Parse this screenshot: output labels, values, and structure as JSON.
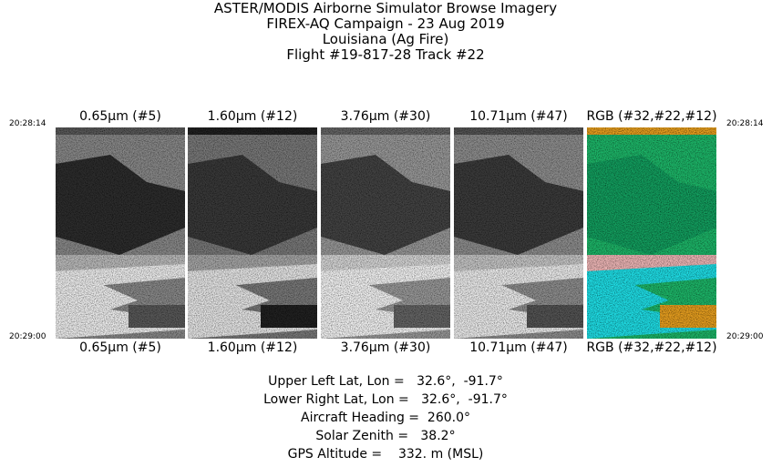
{
  "header": {
    "lines": [
      "ASTER/MODIS Airborne Simulator Browse Imagery",
      "FIREX-AQ Campaign - 23 Aug 2019",
      "Louisiana (Ag Fire)",
      "Flight #19-817-28 Track #22"
    ]
  },
  "times": {
    "start": "20:28:14",
    "end": "20:29:00"
  },
  "panels": [
    {
      "label": "0.65μm (#5)"
    },
    {
      "label": "1.60μm (#12)"
    },
    {
      "label": "3.76μm (#30)"
    },
    {
      "label": "10.71μm (#47)"
    },
    {
      "label": "RGB (#32,#22,#12)"
    }
  ],
  "info": [
    "Upper Left Lat, Lon =   32.6°,  -91.7°",
    "Lower Right Lat, Lon =   32.6°,  -91.7°",
    "Aircraft Heading =  260.0°",
    "Solar Zenith =   38.2°",
    "GPS Altitude =    332. m (MSL)"
  ]
}
